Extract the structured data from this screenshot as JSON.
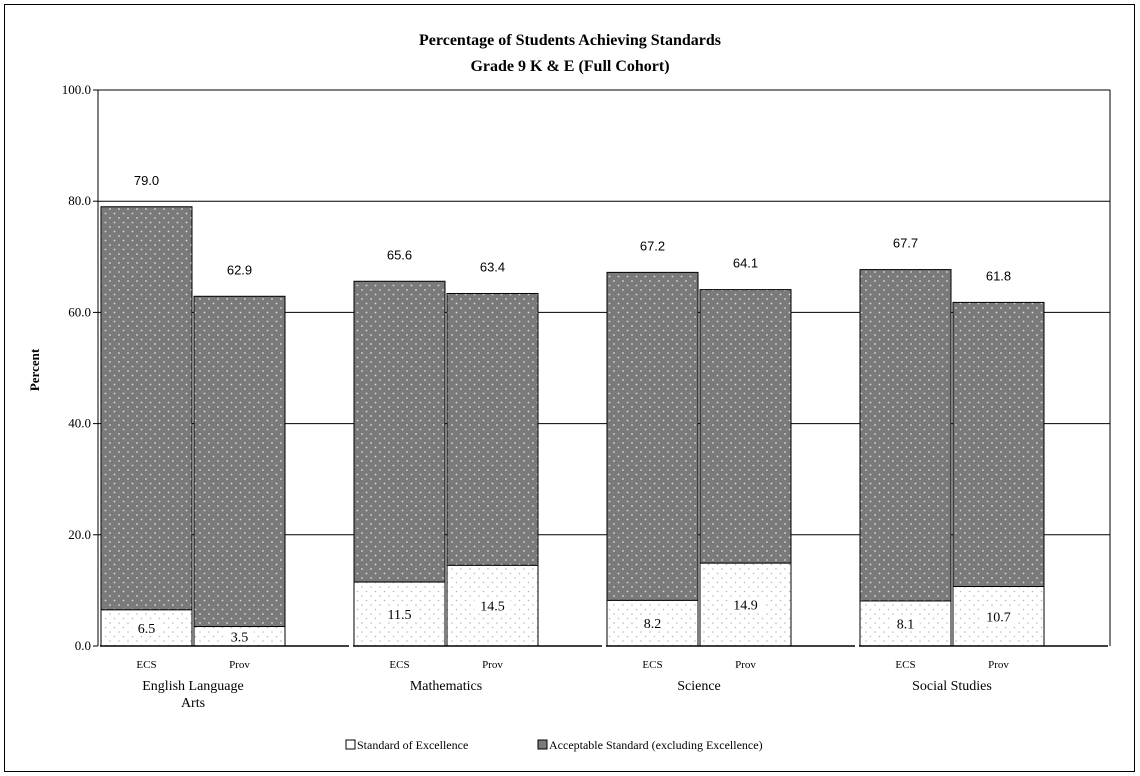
{
  "chart_data": {
    "type": "bar",
    "stacked": true,
    "title": "Percentage of Students Achieving Standards",
    "subtitle": "Grade 9 K & E (Full Cohort)",
    "ylabel": "Percent",
    "ylim": [
      0,
      100
    ],
    "y_ticks": [
      "0.0",
      "20.0",
      "40.0",
      "60.0",
      "80.0",
      "100.0"
    ],
    "grid": true,
    "legend_position": "bottom",
    "groups": [
      {
        "name": "English Language Arts",
        "name_lines": [
          "English Language",
          "Arts"
        ],
        "bars": [
          {
            "label": "ECS",
            "excellence": 6.5,
            "total": 79.0,
            "excellence_label": "6.5",
            "total_label": "79.0"
          },
          {
            "label": "Prov",
            "excellence": 3.5,
            "total": 62.9,
            "excellence_label": "3.5",
            "total_label": "62.9"
          }
        ]
      },
      {
        "name": "Mathematics",
        "name_lines": [
          "Mathematics"
        ],
        "bars": [
          {
            "label": "ECS",
            "excellence": 11.5,
            "total": 65.6,
            "excellence_label": "11.5",
            "total_label": "65.6"
          },
          {
            "label": "Prov",
            "excellence": 14.5,
            "total": 63.4,
            "excellence_label": "14.5",
            "total_label": "63.4"
          }
        ]
      },
      {
        "name": "Science",
        "name_lines": [
          "Science"
        ],
        "bars": [
          {
            "label": "ECS",
            "excellence": 8.2,
            "total": 67.2,
            "excellence_label": "8.2",
            "total_label": "67.2"
          },
          {
            "label": "Prov",
            "excellence": 14.9,
            "total": 64.1,
            "excellence_label": "14.9",
            "total_label": "64.1"
          }
        ]
      },
      {
        "name": "Social Studies",
        "name_lines": [
          "Social Studies"
        ],
        "bars": [
          {
            "label": "ECS",
            "excellence": 8.1,
            "total": 67.7,
            "excellence_label": "8.1",
            "total_label": "67.7"
          },
          {
            "label": "Prov",
            "excellence": 10.7,
            "total": 61.8,
            "excellence_label": "10.7",
            "total_label": "61.8"
          }
        ]
      }
    ],
    "series": [
      {
        "name": "Standard of Excellence",
        "color": "#ffffff"
      },
      {
        "name": "Acceptable Standard (excluding Excellence)",
        "color": "#7a7a7a"
      }
    ]
  }
}
